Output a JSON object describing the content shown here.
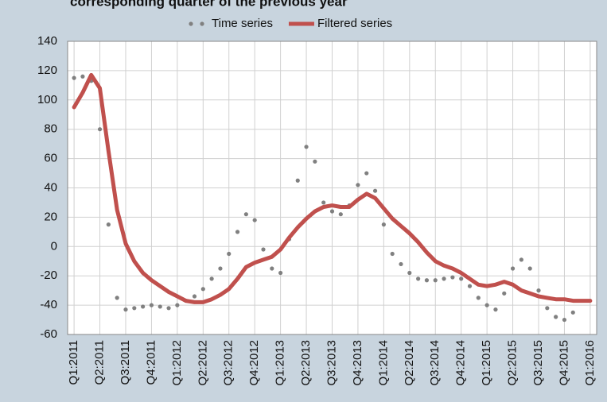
{
  "chart_data": {
    "type": "line",
    "title": "corresponding quarter of the previous year",
    "x": [
      0,
      1,
      2,
      3,
      4,
      5,
      6,
      7,
      8,
      9,
      10,
      11,
      12,
      13,
      14,
      15,
      16,
      17,
      18,
      19,
      20,
      21,
      22,
      23,
      24,
      25,
      26,
      27,
      28,
      29,
      30,
      31,
      32,
      33,
      34,
      35,
      36,
      37,
      38,
      39,
      40,
      41,
      42,
      43,
      44,
      45,
      46,
      47,
      48,
      49,
      50,
      51,
      52,
      53,
      54,
      55,
      56,
      57,
      58,
      59,
      60
    ],
    "series": [
      {
        "name": "Time series",
        "color": "#808080",
        "style": "dots",
        "values": [
          115,
          116,
          113,
          80,
          15,
          -35,
          -43,
          -42,
          -41,
          -40,
          -41,
          -42,
          -40,
          -37,
          -34,
          -29,
          -22,
          -15,
          -5,
          10,
          22,
          18,
          -2,
          -15,
          -18,
          5,
          45,
          68,
          58,
          30,
          24,
          22,
          28,
          42,
          50,
          38,
          15,
          -5,
          -12,
          -18,
          -22,
          -23,
          -23,
          -22,
          -21,
          -22,
          -27,
          -35,
          -40,
          -43,
          -32,
          -15,
          -9,
          -15,
          -30,
          -42,
          -48,
          -50,
          -45,
          null,
          null
        ]
      },
      {
        "name": "Filtered series",
        "color": "#c0504d",
        "style": "line",
        "values": [
          95,
          105,
          117,
          108,
          65,
          25,
          2,
          -10,
          -18,
          -23,
          -27,
          -31,
          -34,
          -37,
          -38,
          -38,
          -36,
          -33,
          -29,
          -22,
          -14,
          -11,
          -9,
          -7,
          -2,
          6,
          13,
          19,
          24,
          27,
          28,
          27,
          27,
          32,
          36,
          33,
          26,
          19,
          14,
          9,
          3,
          -4,
          -10,
          -13,
          -15,
          -18,
          -22,
          -26,
          -27,
          -26,
          -24,
          -26,
          -30,
          -32,
          -34,
          -35,
          -36,
          -36,
          -37,
          -37,
          -37
        ]
      }
    ],
    "xlim": [
      -0.75,
      60.75
    ],
    "xticks": [
      {
        "value": 0,
        "label": "Q1:2011"
      },
      {
        "value": 3,
        "label": "Q2:2011"
      },
      {
        "value": 6,
        "label": "Q3:2011"
      },
      {
        "value": 9,
        "label": "Q4:2011"
      },
      {
        "value": 12,
        "label": "Q1:2012"
      },
      {
        "value": 15,
        "label": "Q2:2012"
      },
      {
        "value": 18,
        "label": "Q3:2012"
      },
      {
        "value": 21,
        "label": "Q4:2012"
      },
      {
        "value": 24,
        "label": "Q1:2013"
      },
      {
        "value": 27,
        "label": "Q2:2013"
      },
      {
        "value": 30,
        "label": "Q3:2013"
      },
      {
        "value": 33,
        "label": "Q4:2013"
      },
      {
        "value": 36,
        "label": "Q1:2014"
      },
      {
        "value": 39,
        "label": "Q2:2014"
      },
      {
        "value": 42,
        "label": "Q3:2014"
      },
      {
        "value": 45,
        "label": "Q4:2014"
      },
      {
        "value": 48,
        "label": "Q1:2015"
      },
      {
        "value": 51,
        "label": "Q2:2015"
      },
      {
        "value": 54,
        "label": "Q3:2015"
      },
      {
        "value": 57,
        "label": "Q4:2015"
      },
      {
        "value": 60,
        "label": "Q1:2016"
      }
    ],
    "ylim": [
      -60,
      140
    ],
    "yticks": [
      -60,
      -40,
      -20,
      0,
      20,
      40,
      60,
      80,
      100,
      120,
      140
    ],
    "grid": true,
    "legend": "top"
  }
}
